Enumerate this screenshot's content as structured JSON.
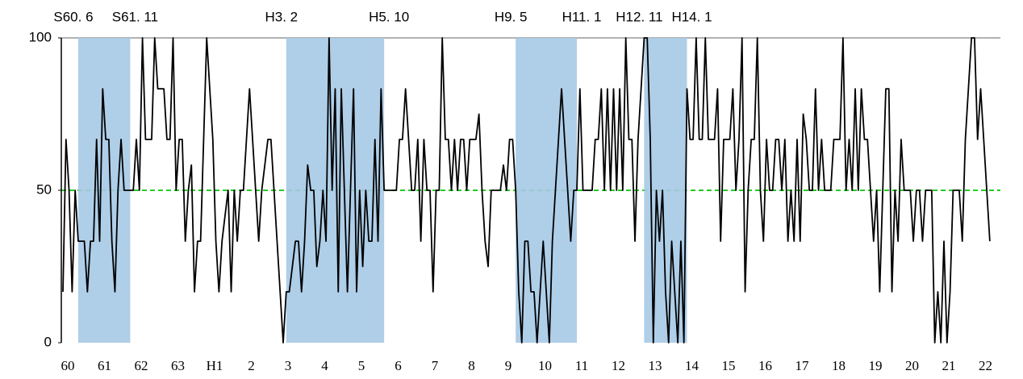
{
  "chart_data": {
    "type": "line",
    "categories": [
      "60",
      null,
      null,
      null,
      null,
      null,
      null,
      null,
      null,
      null,
      null,
      null,
      "61",
      null,
      null,
      null,
      null,
      null,
      null,
      null,
      null,
      null,
      null,
      null,
      "62",
      null,
      null,
      null,
      null,
      null,
      null,
      null,
      null,
      null,
      null,
      null,
      "63",
      null,
      null,
      null,
      null,
      null,
      null,
      null,
      null,
      null,
      null,
      null,
      "H1",
      null,
      null,
      null,
      null,
      null,
      null,
      null,
      null,
      null,
      null,
      null,
      "2",
      null,
      null,
      null,
      null,
      null,
      null,
      null,
      null,
      null,
      null,
      null,
      "3",
      null,
      null,
      null,
      null,
      null,
      null,
      null,
      null,
      null,
      null,
      null,
      "4",
      null,
      null,
      null,
      null,
      null,
      null,
      null,
      null,
      null,
      null,
      null,
      "5",
      null,
      null,
      null,
      null,
      null,
      null,
      null,
      null,
      null,
      null,
      null,
      "6",
      null,
      null,
      null,
      null,
      null,
      null,
      null,
      null,
      null,
      null,
      null,
      "7",
      null,
      null,
      null,
      null,
      null,
      null,
      null,
      null,
      null,
      null,
      null,
      "8",
      null,
      null,
      null,
      null,
      null,
      null,
      null,
      null,
      null,
      null,
      null,
      "9",
      null,
      null,
      null,
      null,
      null,
      null,
      null,
      null,
      null,
      null,
      null,
      "10",
      null,
      null,
      null,
      null,
      null,
      null,
      null,
      null,
      null,
      null,
      null,
      "11",
      null,
      null,
      null,
      null,
      null,
      null,
      null,
      null,
      null,
      null,
      null,
      "12",
      null,
      null,
      null,
      null,
      null,
      null,
      null,
      null,
      null,
      null,
      null,
      "13",
      null,
      null,
      null,
      null,
      null,
      null,
      null,
      null,
      null,
      null,
      null,
      "14",
      null,
      null,
      null,
      null,
      null,
      null,
      null,
      null,
      null,
      null,
      null,
      "15",
      null,
      null,
      null,
      null,
      null,
      null,
      null,
      null,
      null,
      null,
      null,
      "16",
      null,
      null,
      null,
      null,
      null,
      null,
      null,
      null,
      null,
      null,
      null,
      "17",
      null,
      null,
      null,
      null,
      null,
      null,
      null,
      null,
      null,
      null,
      null,
      "18",
      null,
      null,
      null,
      null,
      null,
      null,
      null,
      null,
      null,
      null,
      null,
      "19",
      null,
      null,
      null,
      null,
      null,
      null,
      null,
      null,
      null,
      null,
      null,
      "20",
      null,
      null,
      null,
      null,
      null,
      null,
      null,
      null,
      null,
      null,
      null,
      "21",
      null,
      null,
      null,
      null,
      null,
      null,
      null,
      null,
      null,
      null,
      null,
      "22",
      null,
      null,
      null
    ],
    "values": [
      16.7,
      66.7,
      50,
      16.7,
      50,
      33.3,
      33.3,
      33.3,
      16.7,
      33.3,
      33.3,
      66.7,
      33.3,
      83.3,
      66.7,
      66.7,
      33.3,
      16.7,
      50,
      66.7,
      50,
      50,
      50,
      50,
      66.7,
      50,
      100,
      66.7,
      66.7,
      66.7,
      100,
      83.3,
      83.3,
      83.3,
      66.7,
      66.7,
      100,
      50,
      66.7,
      66.7,
      33.3,
      50,
      58.3,
      16.7,
      33.3,
      33.3,
      66.7,
      100,
      83.3,
      66.7,
      33.3,
      16.7,
      33.3,
      41.7,
      50,
      16.7,
      50,
      33.3,
      50,
      50,
      66.7,
      83.3,
      66.7,
      50,
      33.3,
      50,
      58.3,
      66.7,
      66.7,
      50,
      33.3,
      16.7,
      0,
      16.7,
      16.7,
      25,
      33.3,
      33.3,
      16.7,
      33.3,
      58.3,
      50,
      50,
      25,
      33.3,
      50,
      33.3,
      100,
      50,
      83.3,
      16.7,
      83.3,
      50,
      16.7,
      50,
      83.3,
      16.7,
      50,
      25,
      50,
      33.3,
      33.3,
      66.7,
      33.3,
      83.3,
      50,
      50,
      50,
      50,
      50,
      66.7,
      66.7,
      83.3,
      66.7,
      50,
      50,
      66.7,
      33.3,
      66.7,
      50,
      50,
      16.7,
      50,
      50,
      100,
      66.7,
      66.7,
      50,
      66.7,
      50,
      66.7,
      66.7,
      50,
      66.7,
      66.7,
      66.7,
      75,
      50,
      33.3,
      25,
      50,
      50,
      50,
      50,
      58.3,
      50,
      66.7,
      66.7,
      50,
      16.7,
      0,
      33.3,
      33.3,
      16.7,
      16.7,
      0,
      16.7,
      33.3,
      16.7,
      0,
      33.3,
      50,
      66.7,
      83.3,
      66.7,
      50,
      33.3,
      50,
      50,
      83.3,
      50,
      50,
      50,
      50,
      66.7,
      66.7,
      83.3,
      50,
      83.3,
      50,
      83.3,
      50,
      83.3,
      50,
      100,
      66.7,
      66.7,
      33.3,
      66.7,
      83.3,
      100,
      100,
      66.7,
      0,
      50,
      33.3,
      50,
      16.7,
      0,
      33.3,
      16.7,
      0,
      33.3,
      0,
      83.3,
      66.7,
      66.7,
      100,
      66.7,
      66.7,
      100,
      66.7,
      66.7,
      66.7,
      83.3,
      33.3,
      66.7,
      66.7,
      66.7,
      83.3,
      50,
      66.7,
      100,
      16.7,
      50,
      66.7,
      66.7,
      100,
      50,
      33.3,
      66.7,
      50,
      50,
      66.7,
      66.7,
      50,
      66.7,
      33.3,
      50,
      33.3,
      66.7,
      33.3,
      75,
      66.7,
      50,
      50,
      83.3,
      50,
      66.7,
      50,
      50,
      50,
      66.7,
      66.7,
      66.7,
      100,
      50,
      66.7,
      50,
      83.3,
      50,
      83.3,
      66.7,
      66.7,
      50,
      33.3,
      50,
      16.7,
      50,
      83.3,
      83.3,
      16.7,
      50,
      33.3,
      66.7,
      50,
      50,
      50,
      33.3,
      50,
      50,
      33.3,
      50,
      50,
      50,
      0,
      16.7,
      0,
      33.3,
      0,
      16.7,
      50,
      50,
      50,
      33.3,
      66.7,
      83.3,
      100,
      100,
      66.7,
      83.3,
      66.7,
      50,
      33.3
    ],
    "color": "#000000",
    "ylim": [
      0,
      100
    ],
    "yticks": [
      0,
      50,
      100
    ],
    "reference_line": {
      "value": 50,
      "color": "#22cc22"
    },
    "shading_color": "#a6c9e6",
    "recessions": [
      {
        "start": 5,
        "end": 22,
        "start_label": "S60. 6",
        "end_label": "S61. 11"
      },
      {
        "start": 73,
        "end": 105,
        "start_label": "H3. 2",
        "end_label": "H5. 10"
      },
      {
        "start": 148,
        "end": 168,
        "start_label": "H9. 5",
        "end_label": "H11. 1"
      },
      {
        "start": 190,
        "end": 204,
        "start_label": "H12. 11",
        "end_label": "H14. 1"
      }
    ]
  }
}
